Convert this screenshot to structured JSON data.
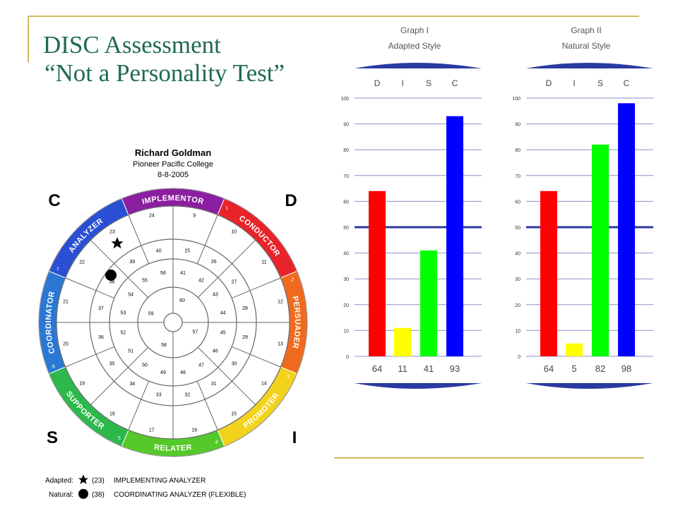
{
  "slide": {
    "title_line1": "DISC Assessment",
    "title_line2": "“Not a Personality Test”",
    "accent_color": "#c9a227"
  },
  "wheel": {
    "name": "Richard Goldman",
    "organization": "Pioneer Pacific College",
    "date": "8-8-2005",
    "corners": [
      "C",
      "D",
      "S",
      "I"
    ],
    "segments": [
      {
        "label": "IMPLEMENTOR",
        "color": "#8b1fa0",
        "num": ""
      },
      {
        "label": "CONDUCTOR",
        "color": "#e8232a",
        "num": "1"
      },
      {
        "label": "PERSUADER",
        "color": "#f06a1e",
        "num": "2"
      },
      {
        "label": "PROMOTER",
        "color": "#f3d21b",
        "num": "3"
      },
      {
        "label": "RELATER",
        "color": "#55c82a",
        "num": "4"
      },
      {
        "label": "SUPPORTER",
        "color": "#2cb84a",
        "num": "5"
      },
      {
        "label": "COORDINATOR",
        "color": "#2a78d4",
        "num": "6"
      },
      {
        "label": "ANALYZER",
        "color": "#2a4fd4",
        "num": "7"
      }
    ],
    "ring_numbers_outer": [
      "9",
      "10",
      "11",
      "12",
      "13",
      "14",
      "15",
      "16",
      "17",
      "18",
      "19",
      "20",
      "21",
      "22",
      "23",
      "24"
    ],
    "ring_numbers_middle": [
      "25",
      "26",
      "27",
      "28",
      "29",
      "30",
      "31",
      "32",
      "33",
      "34",
      "35",
      "36",
      "37",
      "38",
      "39",
      "40"
    ],
    "ring_numbers_inner": [
      "41",
      "42",
      "43",
      "44",
      "45",
      "46",
      "47",
      "48",
      "49",
      "50",
      "51",
      "52",
      "53",
      "54",
      "55",
      "56"
    ],
    "ring_numbers_core": [
      "57",
      "58",
      "59",
      "60"
    ],
    "legend": [
      {
        "key": "Adapted:",
        "symbol": "star-icon",
        "value": "(23)",
        "text": "IMPLEMENTING ANALYZER"
      },
      {
        "key": "Natural:",
        "symbol": "dot-icon",
        "value": "(38)",
        "text": "COORDINATING ANALYZER (FLEXIBLE)"
      }
    ]
  },
  "chart_data": [
    {
      "type": "bar",
      "title": "Graph I",
      "subtitle": "Adapted Style",
      "categories": [
        "D",
        "I",
        "S",
        "C"
      ],
      "values": [
        64,
        11,
        41,
        93
      ],
      "value_labels": [
        "64",
        "11",
        "41",
        "93"
      ],
      "colors": [
        "#ff0000",
        "#ffff00",
        "#00ff00",
        "#0000ff"
      ],
      "ylim": [
        0,
        100
      ],
      "yticks": [
        "0",
        "10",
        "20",
        "30",
        "40",
        "50",
        "60",
        "70",
        "80",
        "90",
        "100"
      ],
      "midline": 50,
      "grid": true
    },
    {
      "type": "bar",
      "title": "Graph II",
      "subtitle": "Natural Style",
      "categories": [
        "D",
        "I",
        "S",
        "C"
      ],
      "values": [
        64,
        5,
        82,
        98
      ],
      "value_labels": [
        "64",
        "5",
        "82",
        "98"
      ],
      "colors": [
        "#ff0000",
        "#ffff00",
        "#00ff00",
        "#0000ff"
      ],
      "ylim": [
        0,
        100
      ],
      "yticks": [
        "0",
        "10",
        "20",
        "30",
        "40",
        "50",
        "60",
        "70",
        "80",
        "90",
        "100"
      ],
      "midline": 50,
      "grid": true
    }
  ]
}
